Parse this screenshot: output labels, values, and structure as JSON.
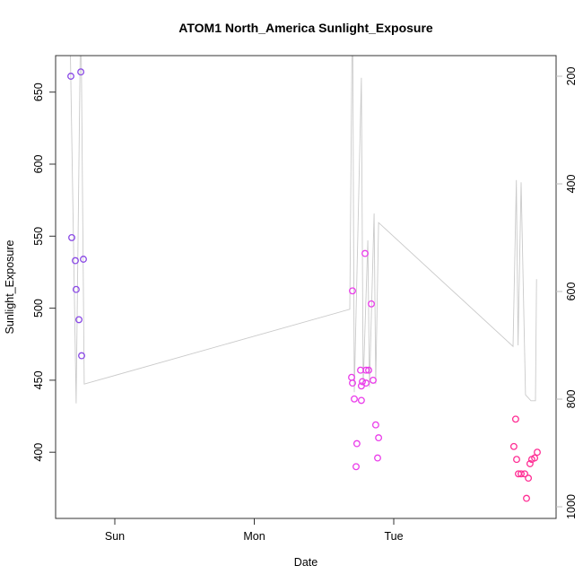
{
  "chart_data": {
    "type": "scatter",
    "title": "ATOM1 North_America Sunlight_Exposure",
    "xlabel": "Date",
    "ylabel": "Sunlight_Exposure",
    "x_axis": {
      "ticks": [
        {
          "pos": 0,
          "label": "Sun"
        },
        {
          "pos": 1,
          "label": "Mon"
        },
        {
          "pos": 2,
          "label": "Tue"
        }
      ],
      "range_days": [
        -0.42,
        3.16
      ]
    },
    "left_axis": {
      "label": "Sunlight_Exposure",
      "ticks": [
        400,
        450,
        500,
        550,
        600,
        650
      ],
      "range": [
        354,
        675
      ],
      "color": "#333333"
    },
    "right_axis": {
      "ticks": [
        200,
        400,
        600,
        800,
        1000
      ],
      "direction": "increases-downward",
      "range": [
        162,
        1022
      ],
      "color": "#bebebe"
    },
    "grid": false,
    "legend": "none",
    "series": [
      {
        "name": "sunlight-points-sat-sun",
        "type": "scatter",
        "axis": "left",
        "color": "#8a49e6",
        "points": [
          [
            -0.315,
            661
          ],
          [
            -0.244,
            664
          ],
          [
            -0.309,
            549
          ],
          [
            -0.283,
            533
          ],
          [
            -0.225,
            534
          ],
          [
            -0.277,
            513
          ],
          [
            -0.257,
            492
          ],
          [
            -0.238,
            467
          ]
        ]
      },
      {
        "name": "sunlight-points-mon",
        "type": "scatter",
        "axis": "left",
        "color": "#ea3cea",
        "points": [
          [
            1.704,
            512
          ],
          [
            1.839,
            503
          ],
          [
            1.794,
            538
          ],
          [
            1.762,
            457
          ],
          [
            1.801,
            457
          ],
          [
            1.82,
            457
          ],
          [
            1.698,
            452
          ],
          [
            1.704,
            448
          ],
          [
            1.775,
            449
          ],
          [
            1.801,
            448
          ],
          [
            1.852,
            450
          ],
          [
            1.768,
            446
          ],
          [
            1.717,
            437
          ],
          [
            1.768,
            436
          ],
          [
            1.871,
            419
          ],
          [
            1.891,
            410
          ],
          [
            1.736,
            406
          ],
          [
            1.884,
            396
          ],
          [
            1.73,
            390
          ]
        ]
      },
      {
        "name": "sunlight-points-tue",
        "type": "scatter",
        "axis": "left",
        "color": "#ff2e94",
        "points": [
          [
            2.874,
            423
          ],
          [
            2.861,
            404
          ],
          [
            2.881,
            395
          ],
          [
            3.029,
            400
          ],
          [
            2.99,
            395
          ],
          [
            3.01,
            396
          ],
          [
            2.977,
            392
          ],
          [
            2.894,
            385
          ],
          [
            2.913,
            385
          ],
          [
            2.939,
            385
          ],
          [
            2.965,
            382
          ],
          [
            2.952,
            368
          ]
        ]
      },
      {
        "name": "secondary-line",
        "type": "line",
        "axis": "right",
        "color": "#cacaca",
        "points": [
          [
            -0.322,
            100
          ],
          [
            -0.277,
            808
          ],
          [
            -0.244,
            60
          ],
          [
            -0.219,
            772
          ],
          [
            1.685,
            633
          ],
          [
            1.704,
            30
          ],
          [
            1.717,
            787
          ],
          [
            1.768,
            203
          ],
          [
            1.781,
            775
          ],
          [
            1.814,
            505
          ],
          [
            1.826,
            778
          ],
          [
            1.859,
            455
          ],
          [
            1.871,
            772
          ],
          [
            1.891,
            472
          ],
          [
            2.855,
            702
          ],
          [
            2.879,
            393
          ],
          [
            2.891,
            700
          ],
          [
            2.913,
            397
          ],
          [
            2.945,
            792
          ],
          [
            2.984,
            803
          ],
          [
            3.016,
            803
          ],
          [
            3.024,
            577
          ]
        ]
      }
    ]
  }
}
